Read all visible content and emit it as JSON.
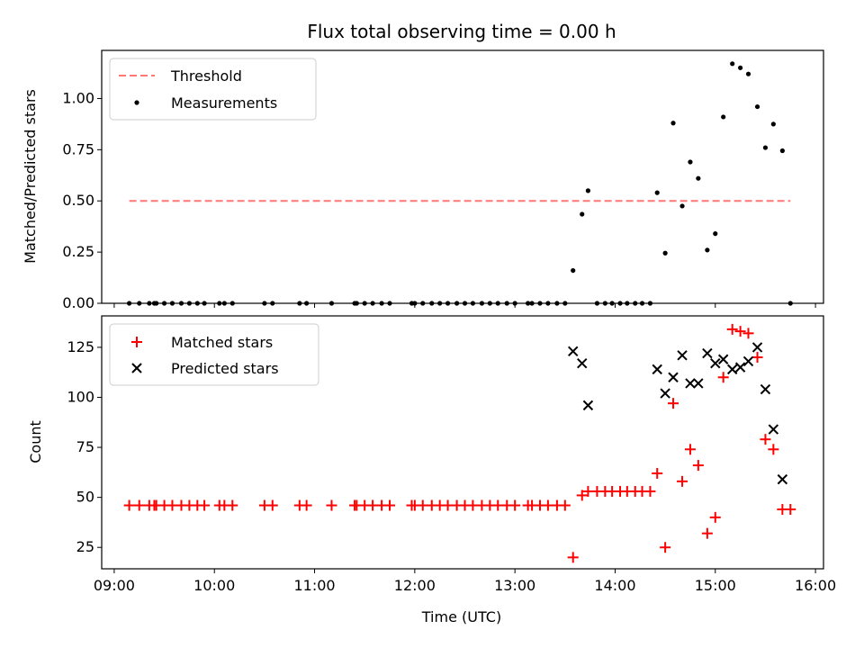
{
  "chart_data": [
    {
      "type": "scatter",
      "title": "Flux total observing time = 0.00 h",
      "xlabel": "",
      "ylabel": "Matched/Predicted stars",
      "x_unit": "hours UTC",
      "xlim": [
        8.875,
        16.08
      ],
      "ylim": [
        0.0,
        1.235
      ],
      "yticks": [
        0.0,
        0.25,
        0.5,
        0.75,
        1.0
      ],
      "ytick_labels": [
        "0.00",
        "0.25",
        "0.50",
        "0.75",
        "1.00"
      ],
      "legend": {
        "position": "upper left",
        "entries": [
          {
            "label": "Threshold",
            "style": "dashed-line",
            "color": "#ff7777"
          },
          {
            "label": "Measurements",
            "style": "dot",
            "color": "#000000"
          }
        ]
      },
      "threshold": {
        "name": "Threshold",
        "y": 0.5,
        "x": [
          9.15,
          15.75
        ],
        "color": "#ff7777"
      },
      "series": [
        {
          "name": "Measurements",
          "color": "#000000",
          "points": [
            [
              9.15,
              0
            ],
            [
              9.25,
              0
            ],
            [
              9.35,
              0
            ],
            [
              9.4,
              0
            ],
            [
              9.42,
              0
            ],
            [
              9.5,
              0
            ],
            [
              9.58,
              0
            ],
            [
              9.67,
              0
            ],
            [
              9.75,
              0
            ],
            [
              9.83,
              0
            ],
            [
              9.9,
              0
            ],
            [
              10.05,
              0
            ],
            [
              10.1,
              0
            ],
            [
              10.18,
              0
            ],
            [
              10.5,
              0
            ],
            [
              10.58,
              0
            ],
            [
              10.85,
              0
            ],
            [
              10.92,
              0
            ],
            [
              11.17,
              0
            ],
            [
              11.4,
              0
            ],
            [
              11.42,
              0
            ],
            [
              11.5,
              0
            ],
            [
              11.58,
              0
            ],
            [
              11.67,
              0
            ],
            [
              11.75,
              0
            ],
            [
              11.97,
              0
            ],
            [
              12.0,
              0
            ],
            [
              12.08,
              0
            ],
            [
              12.17,
              0
            ],
            [
              12.25,
              0
            ],
            [
              12.33,
              0
            ],
            [
              12.42,
              0
            ],
            [
              12.5,
              0
            ],
            [
              12.58,
              0
            ],
            [
              12.67,
              0
            ],
            [
              12.75,
              0
            ],
            [
              12.83,
              0
            ],
            [
              12.92,
              0
            ],
            [
              13.0,
              0
            ],
            [
              13.13,
              0
            ],
            [
              13.17,
              0
            ],
            [
              13.25,
              0
            ],
            [
              13.33,
              0
            ],
            [
              13.42,
              0
            ],
            [
              13.5,
              0
            ],
            [
              13.58,
              0.16
            ],
            [
              13.67,
              0.435
            ],
            [
              13.73,
              0.55
            ],
            [
              13.82,
              0
            ],
            [
              13.9,
              0
            ],
            [
              13.97,
              0
            ],
            [
              14.05,
              0
            ],
            [
              14.12,
              0
            ],
            [
              14.2,
              0
            ],
            [
              14.27,
              0
            ],
            [
              14.35,
              0
            ],
            [
              14.42,
              0.54
            ],
            [
              14.5,
              0.245
            ],
            [
              14.58,
              0.88
            ],
            [
              14.67,
              0.475
            ],
            [
              14.75,
              0.69
            ],
            [
              14.83,
              0.61
            ],
            [
              14.92,
              0.26
            ],
            [
              15.0,
              0.34
            ],
            [
              15.08,
              0.91
            ],
            [
              15.17,
              1.17
            ],
            [
              15.25,
              1.15
            ],
            [
              15.33,
              1.12
            ],
            [
              15.42,
              0.96
            ],
            [
              15.5,
              0.76
            ],
            [
              15.58,
              0.875
            ],
            [
              15.67,
              0.745
            ],
            [
              15.75,
              0
            ]
          ]
        }
      ]
    },
    {
      "type": "scatter",
      "title": "",
      "xlabel": "Time (UTC)",
      "ylabel": "Count",
      "x_unit": "hours UTC",
      "xlim": [
        8.875,
        16.08
      ],
      "ylim": [
        14.3,
        140.7
      ],
      "xticks": [
        9,
        10,
        11,
        12,
        13,
        14,
        15,
        16
      ],
      "xtick_labels": [
        "09:00",
        "10:00",
        "11:00",
        "12:00",
        "13:00",
        "14:00",
        "15:00",
        "16:00"
      ],
      "yticks": [
        25,
        50,
        75,
        100,
        125
      ],
      "ytick_labels": [
        "25",
        "50",
        "75",
        "100",
        "125"
      ],
      "legend": {
        "position": "upper left",
        "entries": [
          {
            "label": "Matched stars",
            "style": "plus",
            "color": "#ff0000"
          },
          {
            "label": "Predicted stars",
            "style": "x",
            "color": "#000000"
          }
        ]
      },
      "series": [
        {
          "name": "Matched stars",
          "marker": "plus",
          "color": "#ff0000",
          "points": [
            [
              9.15,
              46
            ],
            [
              9.25,
              46
            ],
            [
              9.35,
              46
            ],
            [
              9.4,
              46
            ],
            [
              9.42,
              46
            ],
            [
              9.5,
              46
            ],
            [
              9.58,
              46
            ],
            [
              9.67,
              46
            ],
            [
              9.75,
              46
            ],
            [
              9.83,
              46
            ],
            [
              9.9,
              46
            ],
            [
              10.05,
              46
            ],
            [
              10.1,
              46
            ],
            [
              10.18,
              46
            ],
            [
              10.5,
              46
            ],
            [
              10.58,
              46
            ],
            [
              10.85,
              46
            ],
            [
              10.92,
              46
            ],
            [
              11.17,
              46
            ],
            [
              11.4,
              46
            ],
            [
              11.42,
              46
            ],
            [
              11.5,
              46
            ],
            [
              11.58,
              46
            ],
            [
              11.67,
              46
            ],
            [
              11.75,
              46
            ],
            [
              11.97,
              46
            ],
            [
              12.0,
              46
            ],
            [
              12.08,
              46
            ],
            [
              12.17,
              46
            ],
            [
              12.25,
              46
            ],
            [
              12.33,
              46
            ],
            [
              12.42,
              46
            ],
            [
              12.5,
              46
            ],
            [
              12.58,
              46
            ],
            [
              12.67,
              46
            ],
            [
              12.75,
              46
            ],
            [
              12.83,
              46
            ],
            [
              12.92,
              46
            ],
            [
              13.0,
              46
            ],
            [
              13.13,
              46
            ],
            [
              13.17,
              46
            ],
            [
              13.25,
              46
            ],
            [
              13.33,
              46
            ],
            [
              13.42,
              46
            ],
            [
              13.5,
              46
            ],
            [
              13.58,
              20
            ],
            [
              13.67,
              51
            ],
            [
              13.73,
              53
            ],
            [
              13.82,
              53
            ],
            [
              13.9,
              53
            ],
            [
              13.97,
              53
            ],
            [
              14.05,
              53
            ],
            [
              14.12,
              53
            ],
            [
              14.2,
              53
            ],
            [
              14.27,
              53
            ],
            [
              14.35,
              53
            ],
            [
              14.42,
              62
            ],
            [
              14.5,
              25
            ],
            [
              14.58,
              97
            ],
            [
              14.67,
              58
            ],
            [
              14.75,
              74
            ],
            [
              14.83,
              66
            ],
            [
              14.92,
              32
            ],
            [
              15.0,
              40
            ],
            [
              15.08,
              110
            ],
            [
              15.17,
              134
            ],
            [
              15.25,
              133
            ],
            [
              15.33,
              132
            ],
            [
              15.42,
              120
            ],
            [
              15.5,
              79
            ],
            [
              15.58,
              74
            ],
            [
              15.67,
              44
            ],
            [
              15.75,
              44
            ]
          ]
        },
        {
          "name": "Predicted stars",
          "marker": "x",
          "color": "#000000",
          "points": [
            [
              13.58,
              123
            ],
            [
              13.67,
              117
            ],
            [
              13.73,
              96
            ],
            [
              14.42,
              114
            ],
            [
              14.5,
              102
            ],
            [
              14.58,
              110
            ],
            [
              14.67,
              121
            ],
            [
              14.75,
              107
            ],
            [
              14.83,
              107
            ],
            [
              14.92,
              122
            ],
            [
              15.0,
              117
            ],
            [
              15.08,
              119
            ],
            [
              15.17,
              114
            ],
            [
              15.25,
              115
            ],
            [
              15.33,
              118
            ],
            [
              15.42,
              125
            ],
            [
              15.5,
              104
            ],
            [
              15.58,
              84
            ],
            [
              15.67,
              59
            ]
          ]
        }
      ]
    }
  ]
}
